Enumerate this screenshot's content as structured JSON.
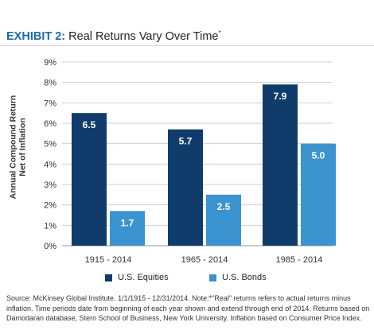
{
  "header": {
    "exhibit_label": "EXHIBIT 2",
    "colon": ":",
    "subtitle": "Real Returns Vary Over Time",
    "mark": "*"
  },
  "chart_data": {
    "type": "bar",
    "categories": [
      "1915 - 2014",
      "1965 - 2014",
      "1985 - 2014"
    ],
    "series": [
      {
        "name": "U.S. Equities",
        "values": [
          6.5,
          5.7,
          7.9
        ],
        "color": "#0f3c6b"
      },
      {
        "name": "U.S. Bonds",
        "values": [
          1.7,
          2.5,
          5.0
        ],
        "color": "#3b93cf"
      }
    ],
    "ylabel_line1": "Annual Compound Return",
    "ylabel_line2": "Net of Inflation",
    "ylim": [
      0,
      9
    ],
    "yticks": [
      "0%",
      "1%",
      "2%",
      "3%",
      "4%",
      "5%",
      "6%",
      "7%",
      "8%",
      "9%"
    ],
    "data_labels": [
      [
        "6.5",
        "5.7",
        "7.9"
      ],
      [
        "1.7",
        "2.5",
        "5.0"
      ]
    ],
    "grid": true,
    "legend_position": "bottom"
  },
  "legend": {
    "equities_label": "U.S. Equities",
    "bonds_label": "U.S. Bonds"
  },
  "footer": {
    "source_note": "Source: McKinsey Global Institute. 1/1/1915 - 12/31/2014. Note:*\"Real\" returns refers to actual returns minus inflation. Time periods date from beginning of each year shown and extend through end of 2014. Returns based on Damodaran database, Stern School of Business, New York University. Inflation based on Consumer Price Index."
  }
}
